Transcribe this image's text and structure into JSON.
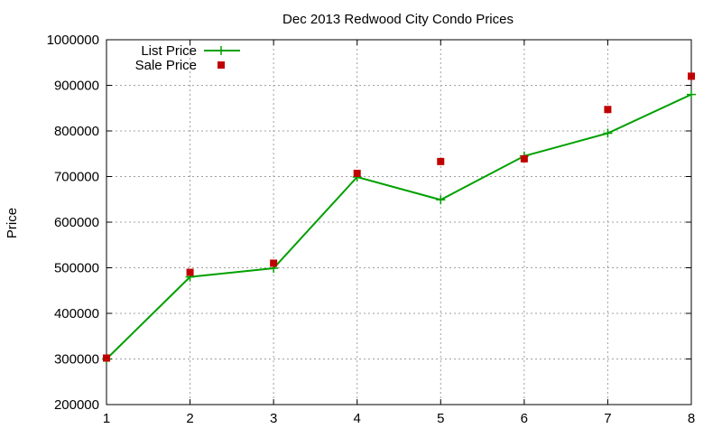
{
  "chart_data": {
    "type": "line",
    "title": "Dec 2013 Redwood City Condo Prices",
    "xlabel": "",
    "ylabel": "Price",
    "xlim": [
      1,
      8
    ],
    "ylim": [
      200000,
      1000000
    ],
    "x_ticks": [
      1,
      2,
      3,
      4,
      5,
      6,
      7,
      8
    ],
    "y_ticks": [
      200000,
      300000,
      400000,
      500000,
      600000,
      700000,
      800000,
      900000,
      1000000
    ],
    "grid": true,
    "legend_position": "top-left",
    "x": [
      1,
      2,
      3,
      4,
      5,
      6,
      7,
      8
    ],
    "series": [
      {
        "name": "List Price",
        "style": "line-with-plus-markers",
        "color": "#00a000",
        "values": [
          300000,
          480000,
          499000,
          699000,
          649000,
          745000,
          795000,
          880000
        ]
      },
      {
        "name": "Sale Price",
        "style": "square-markers",
        "color": "#c00000",
        "values": [
          302000,
          490000,
          510000,
          707000,
          733000,
          739000,
          847000,
          920000
        ]
      }
    ]
  }
}
